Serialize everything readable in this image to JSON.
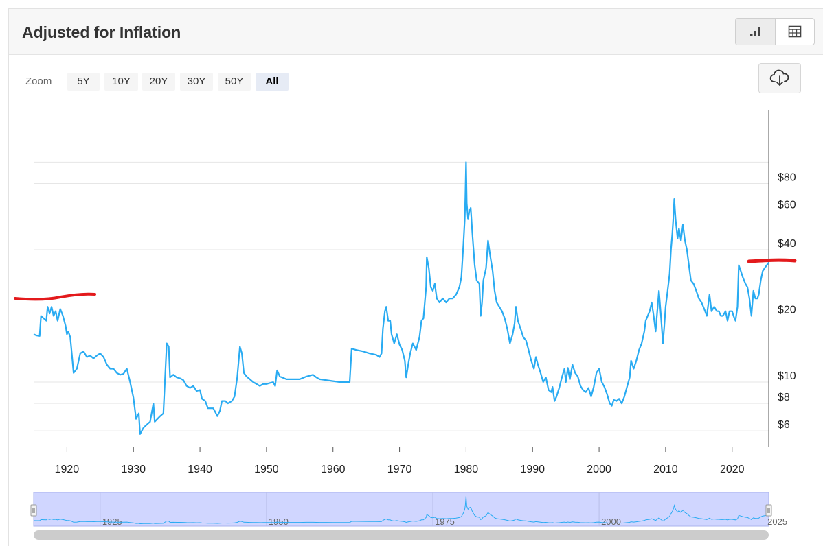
{
  "header": {
    "title": "Adjusted for Inflation"
  },
  "view_toggle": {
    "chart_icon": "bar-chart-icon",
    "table_icon": "table-icon"
  },
  "zoom": {
    "label": "Zoom",
    "options": [
      "5Y",
      "10Y",
      "20Y",
      "30Y",
      "50Y",
      "All"
    ],
    "selected": "All"
  },
  "download": {
    "icon": "download-cloud-icon"
  },
  "colors": {
    "series": "#29abf2",
    "annotation": "#e31a1c",
    "navigator_fill": "#d0d6ff"
  },
  "chart_data": {
    "type": "line",
    "title": "Adjusted for Inflation",
    "y_scale": "log",
    "y_ticks": [
      6,
      8,
      10,
      20,
      40,
      60,
      80
    ],
    "y_tick_labels": [
      "$6",
      "$8",
      "$10",
      "$20",
      "$40",
      "$60",
      "$80"
    ],
    "x_ticks": [
      1920,
      1930,
      1940,
      1950,
      1960,
      1970,
      1980,
      1990,
      2000,
      2010,
      2020
    ],
    "x_tick_labels": [
      "1920",
      "1930",
      "1940",
      "1950",
      "1960",
      "1970",
      "1980",
      "1990",
      "2000",
      "2010",
      "2020"
    ],
    "xlim": [
      1915,
      2025.5
    ],
    "grid": "horizontal",
    "legend": "none",
    "navigator": {
      "labels": [
        "1925",
        "1950",
        "1975",
        "2000",
        "2025"
      ]
    },
    "series": [
      {
        "values": [
          [
            1915.0,
            16.5
          ],
          [
            1915.4,
            16.3
          ],
          [
            1915.9,
            16.2
          ],
          [
            1916.1,
            20
          ],
          [
            1916.5,
            19.5
          ],
          [
            1916.9,
            19
          ],
          [
            1917.1,
            22
          ],
          [
            1917.4,
            20.5
          ],
          [
            1917.7,
            22
          ],
          [
            1918.0,
            20
          ],
          [
            1918.3,
            21
          ],
          [
            1918.6,
            19
          ],
          [
            1919.0,
            21.5
          ],
          [
            1919.4,
            20
          ],
          [
            1919.8,
            18
          ],
          [
            1920.0,
            16.5
          ],
          [
            1920.2,
            17
          ],
          [
            1920.5,
            16
          ],
          [
            1921.0,
            11
          ],
          [
            1921.5,
            11.5
          ],
          [
            1922.0,
            13.5
          ],
          [
            1922.5,
            13.8
          ],
          [
            1923.0,
            13
          ],
          [
            1923.5,
            13.2
          ],
          [
            1924.0,
            12.8
          ],
          [
            1924.5,
            13.2
          ],
          [
            1925.0,
            13.5
          ],
          [
            1925.5,
            13
          ],
          [
            1926.0,
            12
          ],
          [
            1926.5,
            11.5
          ],
          [
            1927.0,
            11.5
          ],
          [
            1927.5,
            11
          ],
          [
            1928.0,
            10.8
          ],
          [
            1928.5,
            10.9
          ],
          [
            1929.0,
            11.5
          ],
          [
            1929.5,
            10
          ],
          [
            1930.0,
            8.5
          ],
          [
            1930.4,
            6.8
          ],
          [
            1930.8,
            7.2
          ],
          [
            1931.0,
            5.8
          ],
          [
            1931.5,
            6.2
          ],
          [
            1932.0,
            6.4
          ],
          [
            1932.5,
            6.6
          ],
          [
            1933.0,
            8
          ],
          [
            1933.2,
            6.6
          ],
          [
            1934.0,
            7
          ],
          [
            1934.5,
            7.2
          ],
          [
            1935.0,
            15
          ],
          [
            1935.3,
            14.5
          ],
          [
            1935.5,
            10.5
          ],
          [
            1936.0,
            10.8
          ],
          [
            1936.5,
            10.5
          ],
          [
            1937.0,
            10.4
          ],
          [
            1937.5,
            10.2
          ],
          [
            1938.0,
            9.6
          ],
          [
            1938.5,
            9.4
          ],
          [
            1939.0,
            9.6
          ],
          [
            1939.5,
            9.1
          ],
          [
            1940.0,
            9.2
          ],
          [
            1940.3,
            8.4
          ],
          [
            1940.8,
            8.2
          ],
          [
            1941.2,
            7.6
          ],
          [
            1941.6,
            7.6
          ],
          [
            1942.0,
            7.6
          ],
          [
            1942.3,
            7.3
          ],
          [
            1942.6,
            7.0
          ],
          [
            1943.0,
            7.4
          ],
          [
            1943.3,
            8.2
          ],
          [
            1943.8,
            8.2
          ],
          [
            1944.2,
            8.0
          ],
          [
            1944.8,
            8.2
          ],
          [
            1945.2,
            8.6
          ],
          [
            1945.6,
            10.5
          ],
          [
            1946.0,
            14.5
          ],
          [
            1946.3,
            13.5
          ],
          [
            1946.6,
            11
          ],
          [
            1947.0,
            10.6
          ],
          [
            1947.5,
            10.3
          ],
          [
            1948.0,
            10
          ],
          [
            1948.5,
            9.8
          ],
          [
            1949.0,
            9.6
          ],
          [
            1949.5,
            9.8
          ],
          [
            1950.0,
            9.8
          ],
          [
            1951.0,
            10
          ],
          [
            1951.3,
            9.6
          ],
          [
            1951.6,
            11.3
          ],
          [
            1952.0,
            10.6
          ],
          [
            1953.0,
            10.3
          ],
          [
            1954.0,
            10.3
          ],
          [
            1955.0,
            10.3
          ],
          [
            1956.0,
            10.6
          ],
          [
            1957.0,
            10.8
          ],
          [
            1957.5,
            10.5
          ],
          [
            1958.0,
            10.3
          ],
          [
            1959.0,
            10.2
          ],
          [
            1960.0,
            10.1
          ],
          [
            1961.0,
            10.0
          ],
          [
            1962.0,
            10.0
          ],
          [
            1962.5,
            10.0
          ],
          [
            1962.8,
            14.2
          ],
          [
            1963.5,
            14.0
          ],
          [
            1964.5,
            13.8
          ],
          [
            1965.5,
            13.5
          ],
          [
            1966.5,
            13.3
          ],
          [
            1967.0,
            13.0
          ],
          [
            1967.3,
            13.5
          ],
          [
            1967.5,
            17.5
          ],
          [
            1967.8,
            21
          ],
          [
            1968.0,
            22
          ],
          [
            1968.3,
            19
          ],
          [
            1968.6,
            19
          ],
          [
            1968.8,
            16.5
          ],
          [
            1969.2,
            15
          ],
          [
            1969.6,
            16.5
          ],
          [
            1970.0,
            14.8
          ],
          [
            1970.4,
            14
          ],
          [
            1970.8,
            12.5
          ],
          [
            1971.0,
            10.5
          ],
          [
            1971.3,
            12
          ],
          [
            1971.6,
            13.5
          ],
          [
            1972.0,
            15
          ],
          [
            1972.5,
            14
          ],
          [
            1973.0,
            16
          ],
          [
            1973.3,
            19
          ],
          [
            1973.6,
            19.5
          ],
          [
            1974.0,
            27
          ],
          [
            1974.1,
            37
          ],
          [
            1974.4,
            33
          ],
          [
            1974.7,
            27
          ],
          [
            1975.0,
            26
          ],
          [
            1975.3,
            28
          ],
          [
            1975.6,
            24
          ],
          [
            1976.0,
            23
          ],
          [
            1976.5,
            24
          ],
          [
            1977.0,
            23
          ],
          [
            1977.5,
            24
          ],
          [
            1978.0,
            24
          ],
          [
            1978.5,
            25
          ],
          [
            1979.0,
            27
          ],
          [
            1979.3,
            30
          ],
          [
            1979.6,
            42
          ],
          [
            1979.8,
            55
          ],
          [
            1979.9,
            70
          ],
          [
            1980.0,
            100
          ],
          [
            1980.1,
            65
          ],
          [
            1980.3,
            55
          ],
          [
            1980.5,
            60
          ],
          [
            1980.7,
            62
          ],
          [
            1980.9,
            50
          ],
          [
            1981.0,
            45
          ],
          [
            1981.3,
            34
          ],
          [
            1981.6,
            29
          ],
          [
            1982.0,
            28
          ],
          [
            1982.2,
            20
          ],
          [
            1982.4,
            23
          ],
          [
            1982.6,
            29
          ],
          [
            1983.0,
            33
          ],
          [
            1983.3,
            44
          ],
          [
            1983.6,
            38
          ],
          [
            1984.0,
            32
          ],
          [
            1984.3,
            26
          ],
          [
            1984.6,
            23
          ],
          [
            1985.0,
            22
          ],
          [
            1985.4,
            21
          ],
          [
            1985.8,
            19.5
          ],
          [
            1986.2,
            17.5
          ],
          [
            1986.6,
            15
          ],
          [
            1987.0,
            16.5
          ],
          [
            1987.3,
            18.5
          ],
          [
            1987.5,
            22
          ],
          [
            1987.8,
            19
          ],
          [
            1988.2,
            17.5
          ],
          [
            1988.6,
            16
          ],
          [
            1989.0,
            15.5
          ],
          [
            1989.4,
            14
          ],
          [
            1989.8,
            12.5
          ],
          [
            1990.2,
            11.5
          ],
          [
            1990.5,
            13
          ],
          [
            1990.8,
            12
          ],
          [
            1991.2,
            11
          ],
          [
            1991.6,
            10
          ],
          [
            1992.0,
            10.5
          ],
          [
            1992.4,
            9.2
          ],
          [
            1992.8,
            9.0
          ],
          [
            1993.0,
            9.5
          ],
          [
            1993.3,
            8.2
          ],
          [
            1993.6,
            8.6
          ],
          [
            1994.0,
            9.4
          ],
          [
            1994.4,
            10.5
          ],
          [
            1994.8,
            11.5
          ],
          [
            1995.0,
            10
          ],
          [
            1995.3,
            11.6
          ],
          [
            1995.6,
            10.3
          ],
          [
            1996.0,
            12
          ],
          [
            1996.4,
            11
          ],
          [
            1996.8,
            10.6
          ],
          [
            1997.2,
            9.6
          ],
          [
            1997.6,
            9.2
          ],
          [
            1998.0,
            9.0
          ],
          [
            1998.4,
            9.4
          ],
          [
            1998.8,
            8.6
          ],
          [
            1999.2,
            9.5
          ],
          [
            1999.6,
            11
          ],
          [
            2000.0,
            11.5
          ],
          [
            2000.4,
            10
          ],
          [
            2000.8,
            9.5
          ],
          [
            2001.2,
            8.8
          ],
          [
            2001.6,
            8.0
          ],
          [
            2001.9,
            7.8
          ],
          [
            2002.2,
            8.3
          ],
          [
            2002.6,
            8.2
          ],
          [
            2003.0,
            8.4
          ],
          [
            2003.4,
            8.0
          ],
          [
            2003.8,
            8.6
          ],
          [
            2004.2,
            9.5
          ],
          [
            2004.6,
            10.5
          ],
          [
            2004.8,
            12.5
          ],
          [
            2005.2,
            11.5
          ],
          [
            2005.6,
            12.5
          ],
          [
            2006.0,
            14
          ],
          [
            2006.4,
            15
          ],
          [
            2006.8,
            17
          ],
          [
            2007.0,
            19
          ],
          [
            2007.3,
            20
          ],
          [
            2007.6,
            21
          ],
          [
            2007.9,
            23
          ],
          [
            2008.2,
            20
          ],
          [
            2008.5,
            17
          ],
          [
            2008.8,
            22
          ],
          [
            2009.0,
            26
          ],
          [
            2009.3,
            20
          ],
          [
            2009.6,
            15
          ],
          [
            2009.8,
            18
          ],
          [
            2010.0,
            22
          ],
          [
            2010.3,
            26
          ],
          [
            2010.6,
            31
          ],
          [
            2010.8,
            40
          ],
          [
            2011.0,
            47
          ],
          [
            2011.2,
            58
          ],
          [
            2011.3,
            68
          ],
          [
            2011.5,
            55
          ],
          [
            2011.8,
            45
          ],
          [
            2012.0,
            50
          ],
          [
            2012.3,
            44
          ],
          [
            2012.6,
            52
          ],
          [
            2012.9,
            44
          ],
          [
            2013.2,
            40
          ],
          [
            2013.5,
            34
          ],
          [
            2013.8,
            29
          ],
          [
            2014.2,
            28
          ],
          [
            2014.6,
            26
          ],
          [
            2015.0,
            24
          ],
          [
            2015.4,
            23
          ],
          [
            2015.8,
            21.5
          ],
          [
            2016.2,
            20
          ],
          [
            2016.6,
            25
          ],
          [
            2016.9,
            21
          ],
          [
            2017.3,
            22
          ],
          [
            2017.7,
            21
          ],
          [
            2018.0,
            21
          ],
          [
            2018.3,
            20
          ],
          [
            2018.6,
            20
          ],
          [
            2019.0,
            21
          ],
          [
            2019.3,
            19
          ],
          [
            2019.6,
            21
          ],
          [
            2020.0,
            21
          ],
          [
            2020.2,
            20
          ],
          [
            2020.5,
            19
          ],
          [
            2020.8,
            22
          ],
          [
            2021.0,
            34
          ],
          [
            2021.3,
            32
          ],
          [
            2021.6,
            30
          ],
          [
            2022.0,
            28
          ],
          [
            2022.3,
            27
          ],
          [
            2022.6,
            24
          ],
          [
            2022.9,
            20
          ],
          [
            2023.2,
            26
          ],
          [
            2023.5,
            24
          ],
          [
            2023.8,
            24
          ],
          [
            2024.0,
            25
          ],
          [
            2024.3,
            29
          ],
          [
            2024.6,
            32
          ],
          [
            2024.9,
            33
          ],
          [
            2025.2,
            34
          ],
          [
            2025.5,
            35
          ]
        ]
      }
    ]
  }
}
